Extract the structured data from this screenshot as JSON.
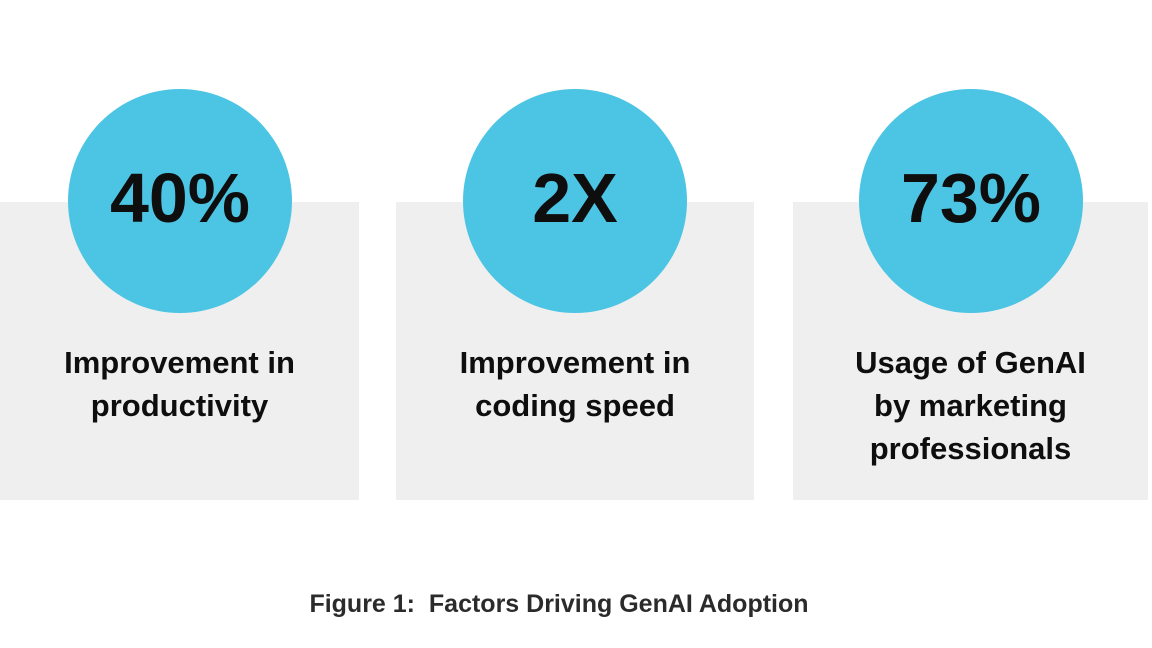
{
  "figure": {
    "caption": "Figure 1:  Factors Driving GenAI Adoption",
    "stats": [
      {
        "value": "40%",
        "label": "Improvement in\nproductivity"
      },
      {
        "value": "2X",
        "label": "Improvement in\ncoding speed"
      },
      {
        "value": "73%",
        "label": "Usage of GenAI\nby marketing\nprofessionals"
      }
    ]
  },
  "colors": {
    "circle": "#4CC4E3",
    "card_background": "#EFEFF0",
    "stat_text": "#0E0E0E",
    "caption_text": "#2B2B2B",
    "page_background": "#FFFFFF"
  },
  "chart_data": {
    "type": "table",
    "title": "Figure 1: Factors Driving GenAI Adoption",
    "categories": [
      "Improvement in productivity",
      "Improvement in coding speed",
      "Usage of GenAI by marketing professionals"
    ],
    "values": [
      "40%",
      "2X",
      "73%"
    ],
    "notes": "Infographic with three highlighted statistics in cyan circles over gray cards"
  }
}
